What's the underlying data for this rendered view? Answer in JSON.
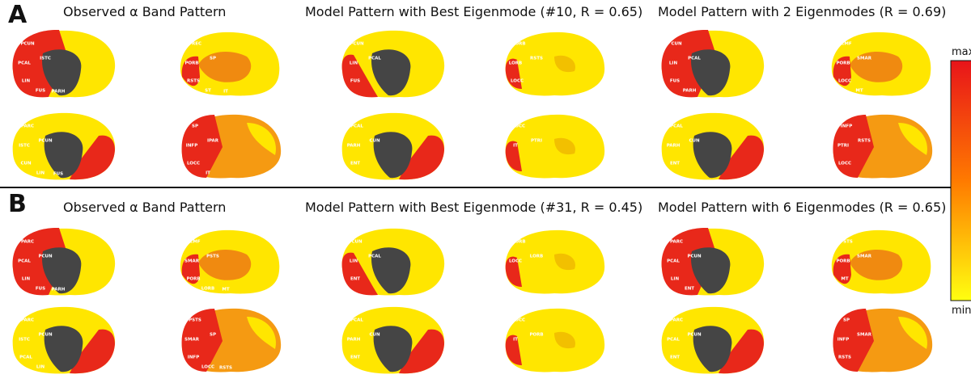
{
  "panels": [
    {
      "label": "A",
      "titles": [
        "Observed α Band Pattern",
        "Model Pattern with Best Eigenmode (#10, R = 0.65)",
        "Model Pattern with 2 Eigenmodes (R = 0.69)"
      ],
      "brains": [
        [
          "PCUN",
          "ISTC",
          "PCAL",
          "LIN",
          "FUS",
          "PARH"
        ],
        [
          "PREC",
          "SP",
          "PORB",
          "RSTS",
          "ST",
          "IT"
        ],
        [
          "PCUN",
          "PCAL",
          "LIN",
          "FUS"
        ],
        [
          "PORB",
          "RSTS",
          "LORB",
          "LOCC"
        ],
        [
          "CUN",
          "PCAL",
          "LIN",
          "FUS",
          "PARH"
        ],
        [
          "CMF",
          "SMAR",
          "PORB",
          "LOCC",
          "MT"
        ],
        [
          "PARC",
          "PCUN",
          "ISTC",
          "CUN",
          "LIN",
          "FUS"
        ],
        [
          "SP",
          "IPAR",
          "INFP",
          "LOCC",
          "IT"
        ],
        [
          "PCAL",
          "CUN",
          "PARH",
          "ENT"
        ],
        [
          "LOCC",
          "PTRI",
          "IT"
        ],
        [
          "PCAL",
          "CUN",
          "PARH",
          "ENT"
        ],
        [
          "INFP",
          "RSTS",
          "PTRI",
          "LOCC"
        ]
      ]
    },
    {
      "label": "B",
      "titles": [
        "Observed α Band Pattern",
        "Model Pattern with Best Eigenmode (#31, R = 0.45)",
        "Model Pattern with 6 Eigenmodes (R = 0.65)"
      ],
      "brains": [
        [
          "PARC",
          "PCUN",
          "PCAL",
          "LIN",
          "FUS",
          "PARH"
        ],
        [
          "CMF",
          "PSTS",
          "SMAR",
          "PORB",
          "LORB",
          "MT"
        ],
        [
          "CUN",
          "PCAL",
          "LIN",
          "ENT"
        ],
        [
          "PORB",
          "LORB",
          "LOCC"
        ],
        [
          "PARC",
          "PCUN",
          "PCAL",
          "LIN",
          "ENT"
        ],
        [
          "PSTS",
          "SMAR",
          "PORB",
          "MT"
        ],
        [
          "PARC",
          "PCUN",
          "ISTC",
          "PCAL",
          "LIN"
        ],
        [
          "PSTS",
          "SP",
          "SMAR",
          "INFP",
          "LOCC",
          "RSTS"
        ],
        [
          "PCAL",
          "CUN",
          "PARH",
          "ENT"
        ],
        [
          "LOCC",
          "PORB",
          "IT"
        ],
        [
          "PARC",
          "PCUN",
          "PCAL",
          "ENT"
        ],
        [
          "SP",
          "SMAR",
          "INFP",
          "RSTS"
        ]
      ]
    }
  ],
  "colorbar": {
    "max": "max",
    "min": "min"
  }
}
